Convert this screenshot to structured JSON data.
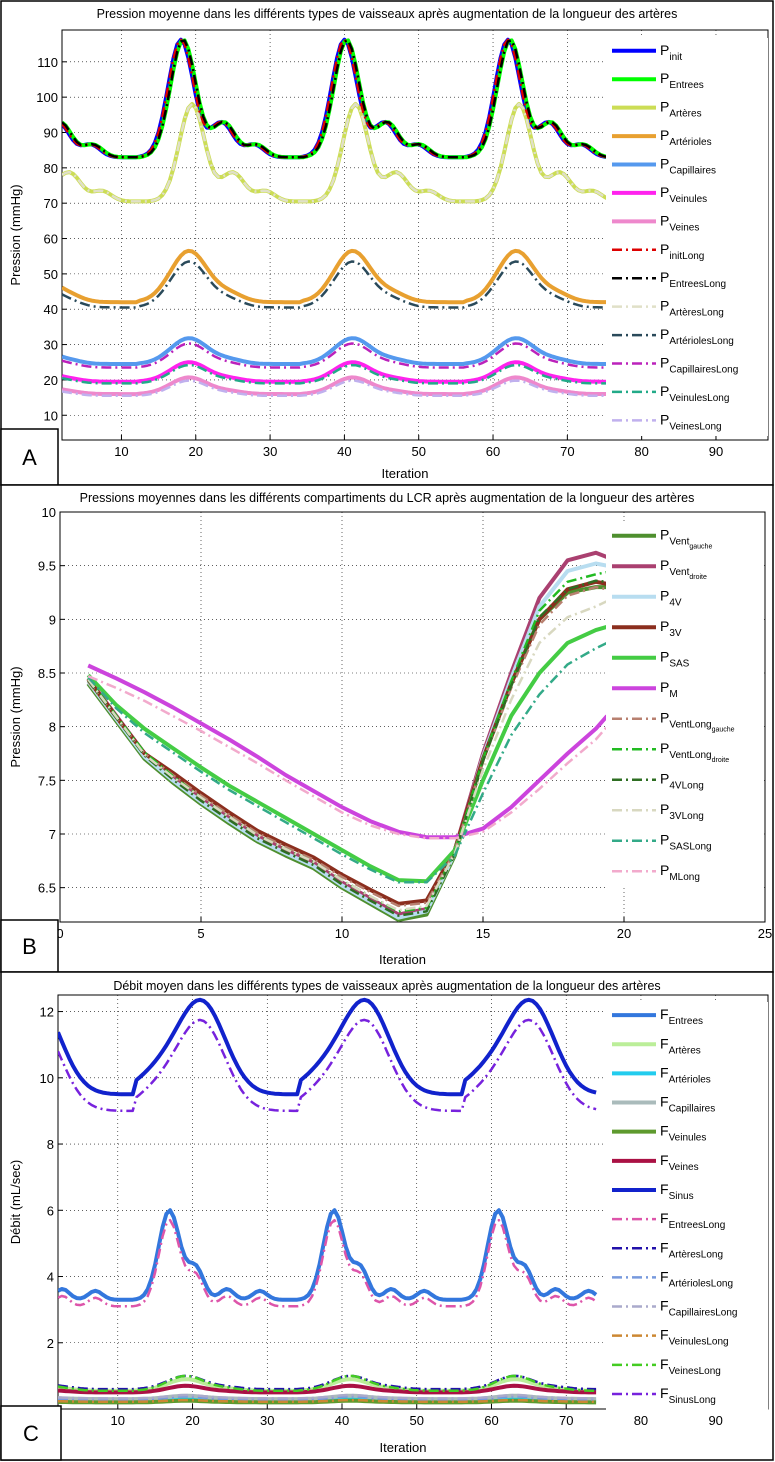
{
  "chart_data": [
    {
      "id": "A",
      "type": "line",
      "panel_label": "A",
      "title": "Pression moyenne dans les différents types de vaisseaux après augmentation de la longueur des artères",
      "xlabel": "Iteration",
      "ylabel": "Pression (mmHg)",
      "xlim": [
        2,
        97
      ],
      "ylim": [
        3,
        119
      ],
      "xticks": [
        10,
        20,
        30,
        40,
        50,
        60,
        70,
        80,
        90
      ],
      "yticks": [
        10,
        20,
        30,
        40,
        50,
        60,
        70,
        80,
        90,
        100,
        110
      ],
      "grid": true,
      "legend_position": "right",
      "x_data_range": [
        2,
        77
      ],
      "series": [
        {
          "base": "P",
          "sub": "init",
          "color": "#0000FF",
          "dash": "solid",
          "width": 4,
          "waveform": "pressure",
          "base_value": 83,
          "amplitude": 35,
          "phase_shift": 0
        },
        {
          "base": "P",
          "sub": "Entrees",
          "color": "#00FF00",
          "dash": "solid",
          "width": 4,
          "waveform": "pressure",
          "base_value": 83,
          "amplitude": 35,
          "phase_shift": 0.3
        },
        {
          "base": "P",
          "sub": "Artères",
          "color": "#CCDD55",
          "dash": "solid",
          "width": 4,
          "waveform": "pressure",
          "base_value": 70.5,
          "amplitude": 29,
          "phase_shift": 1.5
        },
        {
          "base": "P",
          "sub": "Artérioles",
          "color": "#E8A030",
          "dash": "solid",
          "width": 4,
          "waveform": "smooth",
          "base_value": 42,
          "amplitude": 14.5,
          "phase_shift": 0
        },
        {
          "base": "P",
          "sub": "Capillaires",
          "color": "#5599EE",
          "dash": "solid",
          "width": 4,
          "waveform": "smooth",
          "base_value": 24.5,
          "amplitude": 7.3,
          "phase_shift": 0
        },
        {
          "base": "P",
          "sub": "Veinules",
          "color": "#FF22EE",
          "dash": "solid",
          "width": 4,
          "waveform": "smooth",
          "base_value": 19.5,
          "amplitude": 5.5,
          "phase_shift": 0
        },
        {
          "base": "P",
          "sub": "Veines",
          "color": "#EE88CC",
          "dash": "solid",
          "width": 4,
          "waveform": "smooth",
          "base_value": 16,
          "amplitude": 4.7,
          "phase_shift": 0
        },
        {
          "base": "P",
          "sub": "initLong",
          "color": "#DD0000",
          "dash": "dashdot",
          "width": 2.5,
          "waveform": "pressure",
          "base_value": 83,
          "amplitude": 35,
          "phase_shift": 0
        },
        {
          "base": "P",
          "sub": "EntreesLong",
          "color": "#000000",
          "dash": "dashdot",
          "width": 2.5,
          "waveform": "pressure",
          "base_value": 83,
          "amplitude": 35,
          "phase_shift": 0.3
        },
        {
          "base": "P",
          "sub": "ArtèresLong",
          "color": "#E0E0C8",
          "dash": "dashdot",
          "width": 2.5,
          "waveform": "pressure",
          "base_value": 70.5,
          "amplitude": 29,
          "phase_shift": 1.5
        },
        {
          "base": "P",
          "sub": "ArtériolesLong",
          "color": "#2A4A5A",
          "dash": "dashdot",
          "width": 2.5,
          "waveform": "smooth",
          "base_value": 40.5,
          "amplitude": 13,
          "phase_shift": 0
        },
        {
          "base": "P",
          "sub": "CapillairesLong",
          "color": "#BB22BB",
          "dash": "dashdot",
          "width": 2.5,
          "waveform": "smooth",
          "base_value": 23.5,
          "amplitude": 6.8,
          "phase_shift": 0
        },
        {
          "base": "P",
          "sub": "VeinulesLong",
          "color": "#22AA88",
          "dash": "dashdot",
          "width": 2.5,
          "waveform": "smooth",
          "base_value": 19,
          "amplitude": 5.2,
          "phase_shift": 0
        },
        {
          "base": "P",
          "sub": "VeinesLong",
          "color": "#C0B0EE",
          "dash": "dashdot",
          "width": 2.5,
          "waveform": "smooth",
          "base_value": 15.5,
          "amplitude": 4.3,
          "phase_shift": 0
        }
      ]
    },
    {
      "id": "B",
      "type": "line",
      "panel_label": "B",
      "title": "Pressions moyennes dans les différents compartiments du LCR après augmentation de la longueur des artères",
      "xlabel": "Iteration",
      "ylabel": "Pression (mmHg)",
      "xlim": [
        0,
        25
      ],
      "ylim": [
        6.18,
        10
      ],
      "xticks": [
        0,
        5,
        10,
        15,
        20,
        25
      ],
      "yticks": [
        6.5,
        7,
        7.5,
        8,
        8.5,
        9,
        9.5,
        10
      ],
      "ytick_labels": [
        "6.5",
        "7",
        "7.5",
        "8",
        "8.5",
        "9",
        "9.5",
        "10"
      ],
      "grid": true,
      "legend_position": "right",
      "x": [
        1,
        2,
        3,
        4,
        5,
        6,
        7,
        8,
        9,
        10,
        11,
        12,
        13,
        14,
        15,
        16,
        17,
        18,
        19,
        19.4
      ],
      "series": [
        {
          "base": "P",
          "sub": "Vent",
          "sub2": "gauche",
          "color": "#4E8F2E",
          "dash": "solid",
          "width": 4,
          "values": [
            8.4,
            8.05,
            7.7,
            7.48,
            7.28,
            7.1,
            6.93,
            6.8,
            6.68,
            6.5,
            6.35,
            6.2,
            6.25,
            6.8,
            7.7,
            8.4,
            9.0,
            9.25,
            9.3,
            9.3
          ]
        },
        {
          "base": "P",
          "sub": "Vent",
          "sub2": "droite",
          "color": "#AA4070",
          "dash": "solid",
          "width": 4,
          "values": [
            8.45,
            8.1,
            7.75,
            7.53,
            7.33,
            7.15,
            6.98,
            6.85,
            6.73,
            6.55,
            6.4,
            6.25,
            6.3,
            6.85,
            7.75,
            8.5,
            9.2,
            9.55,
            9.62,
            9.58
          ]
        },
        {
          "base": "P",
          "sub": "4V",
          "color": "#B8DDF0",
          "dash": "solid",
          "width": 4,
          "values": [
            8.42,
            8.07,
            7.72,
            7.5,
            7.3,
            7.12,
            6.95,
            6.82,
            6.7,
            6.52,
            6.37,
            6.22,
            6.28,
            6.82,
            7.72,
            8.45,
            9.12,
            9.45,
            9.52,
            9.5
          ]
        },
        {
          "base": "P",
          "sub": "3V",
          "color": "#8B2E1E",
          "dash": "solid",
          "width": 4,
          "values": [
            8.44,
            8.09,
            7.75,
            7.57,
            7.38,
            7.2,
            7.03,
            6.9,
            6.78,
            6.62,
            6.48,
            6.35,
            6.38,
            6.85,
            7.7,
            8.4,
            9.0,
            9.28,
            9.35,
            9.33
          ]
        },
        {
          "base": "P",
          "sub": "SAS",
          "color": "#44CC44",
          "dash": "solid",
          "width": 4,
          "values": [
            8.48,
            8.2,
            7.98,
            7.8,
            7.62,
            7.45,
            7.3,
            7.15,
            7.0,
            6.85,
            6.7,
            6.57,
            6.56,
            6.85,
            7.5,
            8.1,
            8.5,
            8.78,
            8.9,
            8.93
          ]
        },
        {
          "base": "P",
          "sub": "M",
          "color": "#CC44DD",
          "dash": "solid",
          "width": 4,
          "values": [
            8.57,
            8.45,
            8.32,
            8.18,
            8.03,
            7.88,
            7.72,
            7.55,
            7.4,
            7.25,
            7.12,
            7.02,
            6.97,
            6.97,
            7.05,
            7.25,
            7.5,
            7.75,
            7.98,
            8.1
          ]
        },
        {
          "base": "P",
          "sub": "VentLong",
          "sub2": "gauche",
          "color": "#B88070",
          "dash": "dashdot",
          "width": 2.5,
          "values": [
            8.42,
            8.08,
            7.75,
            7.55,
            7.36,
            7.18,
            7.01,
            6.88,
            6.76,
            6.6,
            6.46,
            6.33,
            6.36,
            6.84,
            7.68,
            8.36,
            8.95,
            9.22,
            9.3,
            9.28
          ]
        },
        {
          "base": "P",
          "sub": "VentLong",
          "sub2": "droite",
          "color": "#22BB22",
          "dash": "dashdot",
          "width": 2.5,
          "values": [
            8.45,
            8.1,
            7.76,
            7.54,
            7.34,
            7.16,
            6.99,
            6.86,
            6.74,
            6.57,
            6.42,
            6.28,
            6.31,
            6.83,
            7.7,
            8.42,
            9.08,
            9.35,
            9.42,
            9.44
          ]
        },
        {
          "base": "P",
          "sub": "4VLong",
          "color": "#2E6E22",
          "dash": "dashdot",
          "width": 2.5,
          "values": [
            8.43,
            8.08,
            7.73,
            7.51,
            7.31,
            7.13,
            6.96,
            6.83,
            6.71,
            6.53,
            6.38,
            6.24,
            6.28,
            6.81,
            7.68,
            8.38,
            9.02,
            9.28,
            9.36,
            9.35
          ]
        },
        {
          "base": "P",
          "sub": "3VLong",
          "color": "#D8D8C0",
          "dash": "dashdot",
          "width": 2.5,
          "values": [
            8.44,
            8.09,
            7.74,
            7.53,
            7.34,
            7.16,
            6.99,
            6.86,
            6.74,
            6.57,
            6.42,
            6.29,
            6.33,
            6.82,
            7.6,
            8.25,
            8.78,
            9.02,
            9.12,
            9.17
          ]
        },
        {
          "base": "P",
          "sub": "SASLong",
          "color": "#33AA88",
          "dash": "dashdot",
          "width": 2.5,
          "values": [
            8.46,
            8.17,
            7.94,
            7.76,
            7.58,
            7.41,
            7.26,
            7.11,
            6.96,
            6.81,
            6.67,
            6.55,
            6.55,
            6.8,
            7.38,
            7.92,
            8.3,
            8.58,
            8.73,
            8.78
          ]
        },
        {
          "base": "P",
          "sub": "MLong",
          "color": "#F2AACC",
          "dash": "dashdot",
          "width": 2.5,
          "values": [
            8.47,
            8.36,
            8.24,
            8.1,
            7.96,
            7.81,
            7.66,
            7.5,
            7.35,
            7.2,
            7.08,
            7.0,
            6.96,
            6.96,
            7.02,
            7.2,
            7.42,
            7.66,
            7.88,
            8.0
          ]
        }
      ]
    },
    {
      "id": "C",
      "type": "line",
      "panel_label": "C",
      "title": "Débit moyen dans les différents types de vaisseaux après augmentation de la longueur des artères",
      "xlabel": "Iteration",
      "ylabel": "Débit (mL/sec)",
      "xlim": [
        2,
        97
      ],
      "ylim": [
        0,
        12.5
      ],
      "xticks": [
        10,
        20,
        30,
        40,
        50,
        60,
        70,
        80,
        90
      ],
      "yticks": [
        2,
        4,
        6,
        8,
        10,
        12
      ],
      "grid": true,
      "legend_position": "right",
      "x_data_range": [
        2,
        74
      ],
      "series": [
        {
          "base": "F",
          "sub": "Entrees",
          "color": "#3377DD",
          "dash": "solid",
          "width": 4,
          "waveform": "inflow",
          "base_value": 3.3,
          "amplitude": 2.7,
          "phase_shift": 0
        },
        {
          "base": "F",
          "sub": "Artères",
          "color": "#BBEE99",
          "dash": "solid",
          "width": 4,
          "waveform": "small",
          "base_value": 0.55,
          "amplitude": 0.35,
          "phase_shift": 0
        },
        {
          "base": "F",
          "sub": "Artérioles",
          "color": "#22CCEE",
          "dash": "solid",
          "width": 4,
          "waveform": "small",
          "base_value": 0.25,
          "amplitude": 0.1,
          "phase_shift": 0
        },
        {
          "base": "F",
          "sub": "Capillaires",
          "color": "#AABBBB",
          "dash": "solid",
          "width": 4,
          "waveform": "small",
          "base_value": 0.3,
          "amplitude": 0.1,
          "phase_shift": 0
        },
        {
          "base": "F",
          "sub": "Veinules",
          "color": "#5E9A2E",
          "dash": "solid",
          "width": 4,
          "waveform": "small",
          "base_value": 0.2,
          "amplitude": 0.05,
          "phase_shift": 0
        },
        {
          "base": "F",
          "sub": "Veines",
          "color": "#AA1144",
          "dash": "solid",
          "width": 4,
          "waveform": "small",
          "base_value": 0.5,
          "amplitude": 0.2,
          "phase_shift": 0
        },
        {
          "base": "F",
          "sub": "Sinus",
          "color": "#1122CC",
          "dash": "solid",
          "width": 4,
          "waveform": "sinus",
          "base_value": 9.5,
          "amplitude": 2.7,
          "phase_shift": 0
        },
        {
          "base": "F",
          "sub": "EntreesLong",
          "color": "#DD55AA",
          "dash": "dashdot",
          "width": 2.5,
          "waveform": "inflow",
          "base_value": 3.1,
          "amplitude": 2.6,
          "phase_shift": 0
        },
        {
          "base": "F",
          "sub": "ArtèresLong",
          "color": "#2211AA",
          "dash": "dashdot",
          "width": 2.5,
          "waveform": "small",
          "base_value": 0.6,
          "amplitude": 0.4,
          "phase_shift": 0
        },
        {
          "base": "F",
          "sub": "ArtériolesLong",
          "color": "#7799DD",
          "dash": "dashdot",
          "width": 2.5,
          "waveform": "small",
          "base_value": 0.28,
          "amplitude": 0.1,
          "phase_shift": 0
        },
        {
          "base": "F",
          "sub": "CapillairesLong",
          "color": "#AAAACC",
          "dash": "dashdot",
          "width": 2.5,
          "waveform": "small",
          "base_value": 0.32,
          "amplitude": 0.1,
          "phase_shift": 0
        },
        {
          "base": "F",
          "sub": "VeinulesLong",
          "color": "#CC8833",
          "dash": "dashdot",
          "width": 2.5,
          "waveform": "small",
          "base_value": 0.22,
          "amplitude": 0.05,
          "phase_shift": 0
        },
        {
          "base": "F",
          "sub": "VeinesLong",
          "color": "#44CC22",
          "dash": "dashdot",
          "width": 2.5,
          "waveform": "small",
          "base_value": 0.55,
          "amplitude": 0.45,
          "phase_shift": 0
        },
        {
          "base": "F",
          "sub": "SinusLong",
          "color": "#7722DD",
          "dash": "dashdot",
          "width": 2.5,
          "waveform": "sinus",
          "base_value": 9.0,
          "amplitude": 2.6,
          "phase_shift": 0
        }
      ]
    }
  ]
}
